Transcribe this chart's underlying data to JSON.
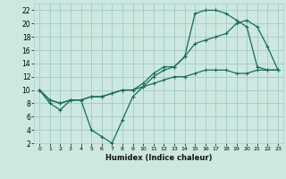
{
  "xlabel": "Humidex (Indice chaleur)",
  "bg_color": "#cce8e0",
  "grid_color": "#aacccc",
  "line_color": "#1a6b5a",
  "xlim": [
    -0.5,
    23.5
  ],
  "ylim": [
    2,
    23
  ],
  "xticks": [
    0,
    1,
    2,
    3,
    4,
    5,
    6,
    7,
    8,
    9,
    10,
    11,
    12,
    13,
    14,
    15,
    16,
    17,
    18,
    19,
    20,
    21,
    22,
    23
  ],
  "yticks": [
    2,
    4,
    6,
    8,
    10,
    12,
    14,
    16,
    18,
    20,
    22
  ],
  "line1_x": [
    0,
    1,
    2,
    3,
    4,
    5,
    6,
    7,
    8,
    9,
    10,
    11,
    12,
    13,
    14,
    15,
    16,
    17,
    18,
    19,
    20,
    21,
    22,
    23
  ],
  "line1_y": [
    10,
    8,
    7,
    8.5,
    8.5,
    4,
    3,
    2,
    5.5,
    9,
    10.5,
    12,
    13,
    13.5,
    15,
    21.5,
    22,
    22,
    21.5,
    20.5,
    19.5,
    13.5,
    13,
    13
  ],
  "line2_x": [
    0,
    1,
    2,
    3,
    4,
    5,
    6,
    7,
    8,
    9,
    10,
    11,
    12,
    13,
    14,
    15,
    16,
    17,
    18,
    19,
    20,
    21,
    22,
    23
  ],
  "line2_y": [
    10,
    8.5,
    8,
    8.5,
    8.5,
    9,
    9,
    9.5,
    10,
    10,
    10.5,
    11,
    11.5,
    12,
    12,
    12.5,
    13,
    13,
    13,
    12.5,
    12.5,
    13,
    13,
    13
  ],
  "line3_x": [
    0,
    1,
    2,
    3,
    4,
    5,
    6,
    7,
    8,
    9,
    10,
    11,
    12,
    13,
    14,
    15,
    16,
    17,
    18,
    19,
    20,
    21,
    22,
    23
  ],
  "line3_y": [
    10,
    8.5,
    8,
    8.5,
    8.5,
    9,
    9,
    9.5,
    10,
    10,
    11,
    12.5,
    13.5,
    13.5,
    15,
    17,
    17.5,
    18,
    18.5,
    20,
    20.5,
    19.5,
    16.5,
    13
  ]
}
